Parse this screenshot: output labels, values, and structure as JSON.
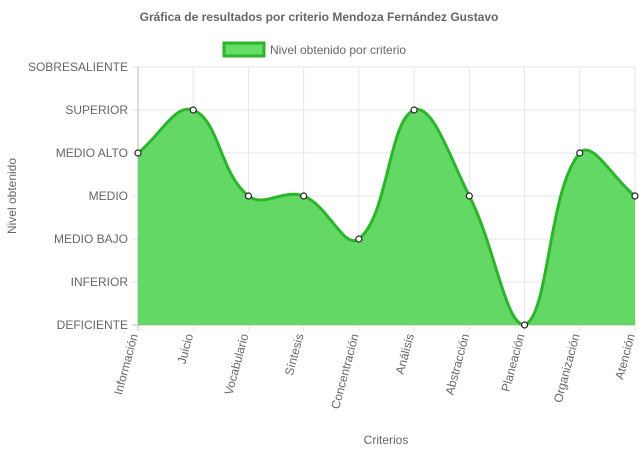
{
  "chart_data": {
    "type": "area",
    "title": "Gráfica de resultados por criterio Mendoza Fernández Gustavo",
    "xlabel": "Criterios",
    "ylabel": "Nivel obtenido",
    "levels": [
      "DEFICIENTE",
      "INFERIOR",
      "MEDIO BAJO",
      "MEDIO",
      "MEDIO ALTO",
      "SUPERIOR",
      "SOBRESALIENTE"
    ],
    "categories": [
      "Información",
      "Juicio",
      "Vocabulario",
      "Síntesis",
      "Concentración",
      "Análisis",
      "Abstracción",
      "Planeación",
      "Organización",
      "Atención"
    ],
    "series": [
      {
        "name": "Nivel obtenido por criterio",
        "values": [
          4,
          5,
          3,
          3,
          2,
          5,
          3,
          0,
          4,
          3
        ]
      }
    ],
    "ylim": [
      0,
      6
    ],
    "grid": true,
    "legend_position": "top",
    "colors": {
      "fill": "#5cd65c",
      "stroke": "#2ab52a",
      "grid": "#e6e6e6",
      "text": "#666666"
    }
  }
}
